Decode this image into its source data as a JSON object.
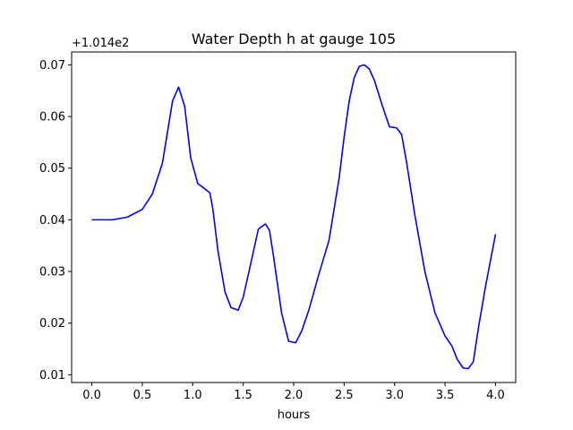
{
  "chart_data": {
    "type": "line",
    "title": "Water Depth h at gauge 105",
    "xlabel": "hours",
    "ylabel": "",
    "y_offset_label": "+1.014e2",
    "y_offset": 101.4,
    "xlim": [
      -0.2,
      4.2
    ],
    "ylim": [
      0.0085,
      0.0725
    ],
    "x_ticks": [
      0.0,
      0.5,
      1.0,
      1.5,
      2.0,
      2.5,
      3.0,
      3.5,
      4.0
    ],
    "x_tick_labels": [
      "0.0",
      "0.5",
      "1.0",
      "1.5",
      "2.0",
      "2.5",
      "3.0",
      "3.5",
      "4.0"
    ],
    "y_ticks": [
      0.01,
      0.02,
      0.03,
      0.04,
      0.05,
      0.06,
      0.07
    ],
    "y_tick_labels": [
      "0.01",
      "0.02",
      "0.03",
      "0.04",
      "0.05",
      "0.06",
      "0.07"
    ],
    "grid": false,
    "series": [
      {
        "color": "#0000ff",
        "x": [
          0.0,
          0.2,
          0.35,
          0.5,
          0.6,
          0.7,
          0.75,
          0.8,
          0.86,
          0.92,
          0.98,
          1.05,
          1.1,
          1.17,
          1.2,
          1.25,
          1.32,
          1.38,
          1.45,
          1.5,
          1.58,
          1.65,
          1.72,
          1.76,
          1.8,
          1.88,
          1.95,
          2.02,
          2.08,
          2.15,
          2.25,
          2.35,
          2.45,
          2.5,
          2.55,
          2.6,
          2.65,
          2.7,
          2.75,
          2.8,
          2.88,
          2.95,
          3.02,
          3.07,
          3.12,
          3.2,
          3.3,
          3.4,
          3.5,
          3.57,
          3.62,
          3.68,
          3.73,
          3.78,
          3.83,
          3.9,
          4.0
        ],
        "y": [
          0.04,
          0.04,
          0.0405,
          0.042,
          0.045,
          0.051,
          0.057,
          0.063,
          0.0657,
          0.062,
          0.052,
          0.047,
          0.0463,
          0.0452,
          0.042,
          0.034,
          0.026,
          0.023,
          0.0225,
          0.025,
          0.032,
          0.0382,
          0.0392,
          0.038,
          0.033,
          0.022,
          0.0165,
          0.0162,
          0.0185,
          0.0225,
          0.0295,
          0.036,
          0.048,
          0.056,
          0.063,
          0.0675,
          0.0697,
          0.07,
          0.0692,
          0.067,
          0.062,
          0.058,
          0.0578,
          0.0565,
          0.051,
          0.041,
          0.03,
          0.022,
          0.0175,
          0.0155,
          0.013,
          0.0113,
          0.0112,
          0.0125,
          0.019,
          0.027,
          0.0372
        ]
      }
    ]
  }
}
